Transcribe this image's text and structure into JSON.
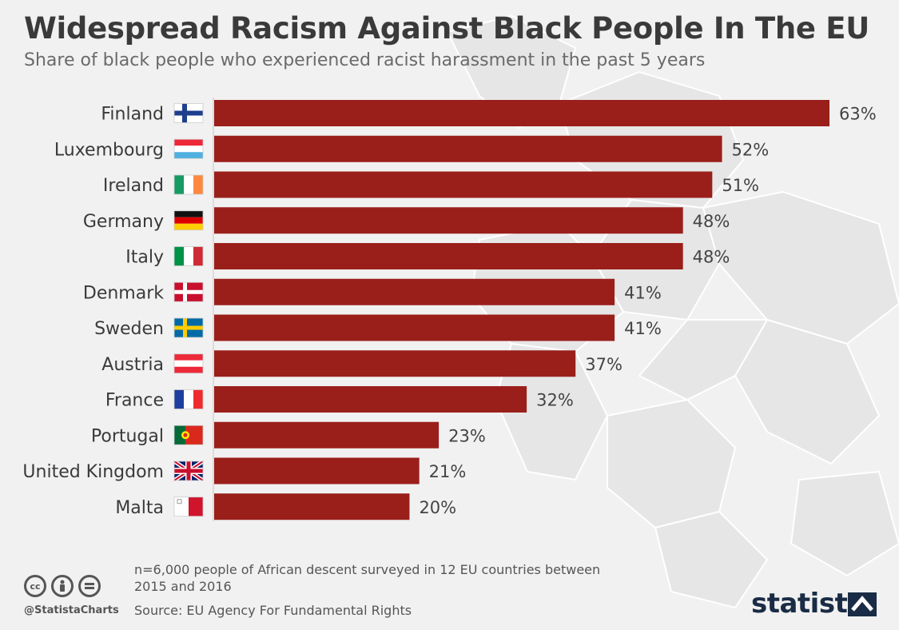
{
  "title": "Widespread Racism Against Black People In The EU",
  "subtitle": "Share of black people who experienced racist harassment in the past 5 years",
  "chart_data": {
    "type": "bar",
    "orientation": "horizontal",
    "categories": [
      "Finland",
      "Luxembourg",
      "Ireland",
      "Germany",
      "Italy",
      "Denmark",
      "Sweden",
      "Austria",
      "France",
      "Portugal",
      "United Kingdom",
      "Malta"
    ],
    "values": [
      63,
      52,
      51,
      48,
      48,
      41,
      41,
      37,
      32,
      23,
      21,
      20
    ],
    "value_labels": [
      "63%",
      "52%",
      "51%",
      "48%",
      "48%",
      "41%",
      "41%",
      "37%",
      "32%",
      "23%",
      "21%",
      "20%"
    ],
    "flags": [
      "finland-flag",
      "luxembourg-flag",
      "ireland-flag",
      "germany-flag",
      "italy-flag",
      "denmark-flag",
      "sweden-flag",
      "austria-flag",
      "france-flag",
      "portugal-flag",
      "united-kingdom-flag",
      "malta-flag"
    ],
    "unit": "%",
    "xlim": [
      0,
      63
    ],
    "bar_color": "#9a1f1a",
    "grid": false,
    "legend": "none"
  },
  "footnote": "n=6,000 people of African descent surveyed in 12 EU countries between 2015 and 2016",
  "source": "Source: EU Agency For Fundamental Rights",
  "credit": "@StatistaCharts",
  "brand": "statista",
  "license_icons": [
    "cc-icon",
    "attribution-icon",
    "no-derivatives-icon"
  ]
}
